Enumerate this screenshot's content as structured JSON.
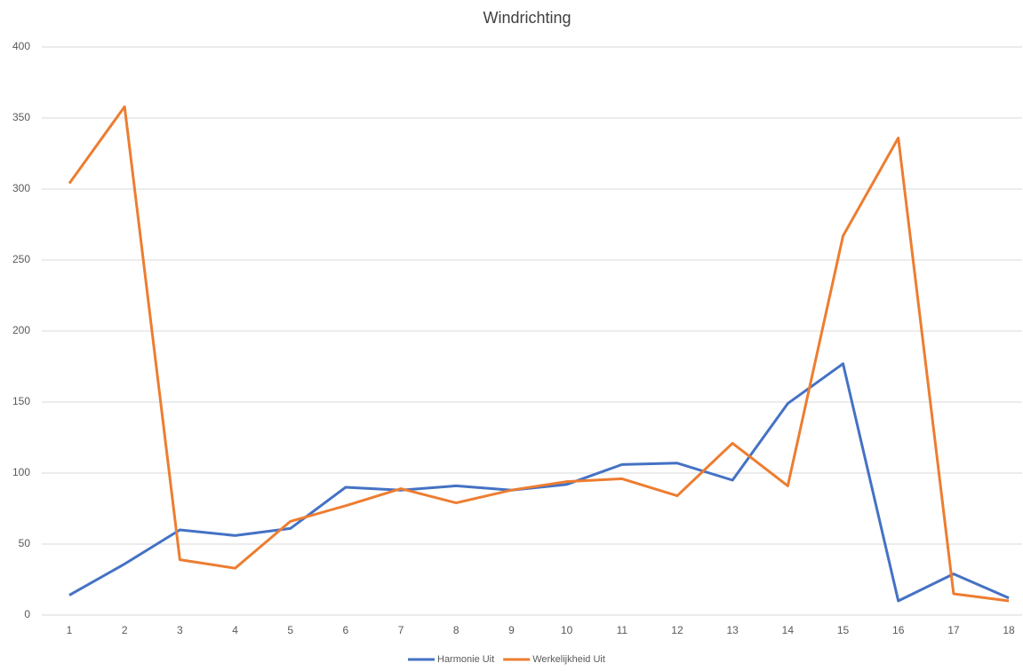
{
  "chart_data": {
    "type": "line",
    "title": "Windrichting",
    "categories": [
      "1",
      "2",
      "3",
      "4",
      "5",
      "6",
      "7",
      "8",
      "9",
      "10",
      "11",
      "12",
      "13",
      "14",
      "15",
      "16",
      "17",
      "18"
    ],
    "series": [
      {
        "name": "Harmonie Uit",
        "color": "#4472c4",
        "values": [
          14,
          36,
          60,
          56,
          61,
          90,
          88,
          91,
          88,
          92,
          106,
          107,
          95,
          149,
          177,
          10,
          29,
          12
        ]
      },
      {
        "name": "Werkelijkheid Uit",
        "color": "#ed7d31",
        "values": [
          304,
          358,
          39,
          33,
          66,
          77,
          89,
          79,
          88,
          94,
          96,
          84,
          121,
          91,
          267,
          336,
          15,
          10
        ]
      }
    ],
    "ylim": [
      0,
      400
    ],
    "yticks": [
      0,
      50,
      100,
      150,
      200,
      250,
      300,
      350,
      400
    ],
    "grid": true,
    "legend": "bottom"
  }
}
